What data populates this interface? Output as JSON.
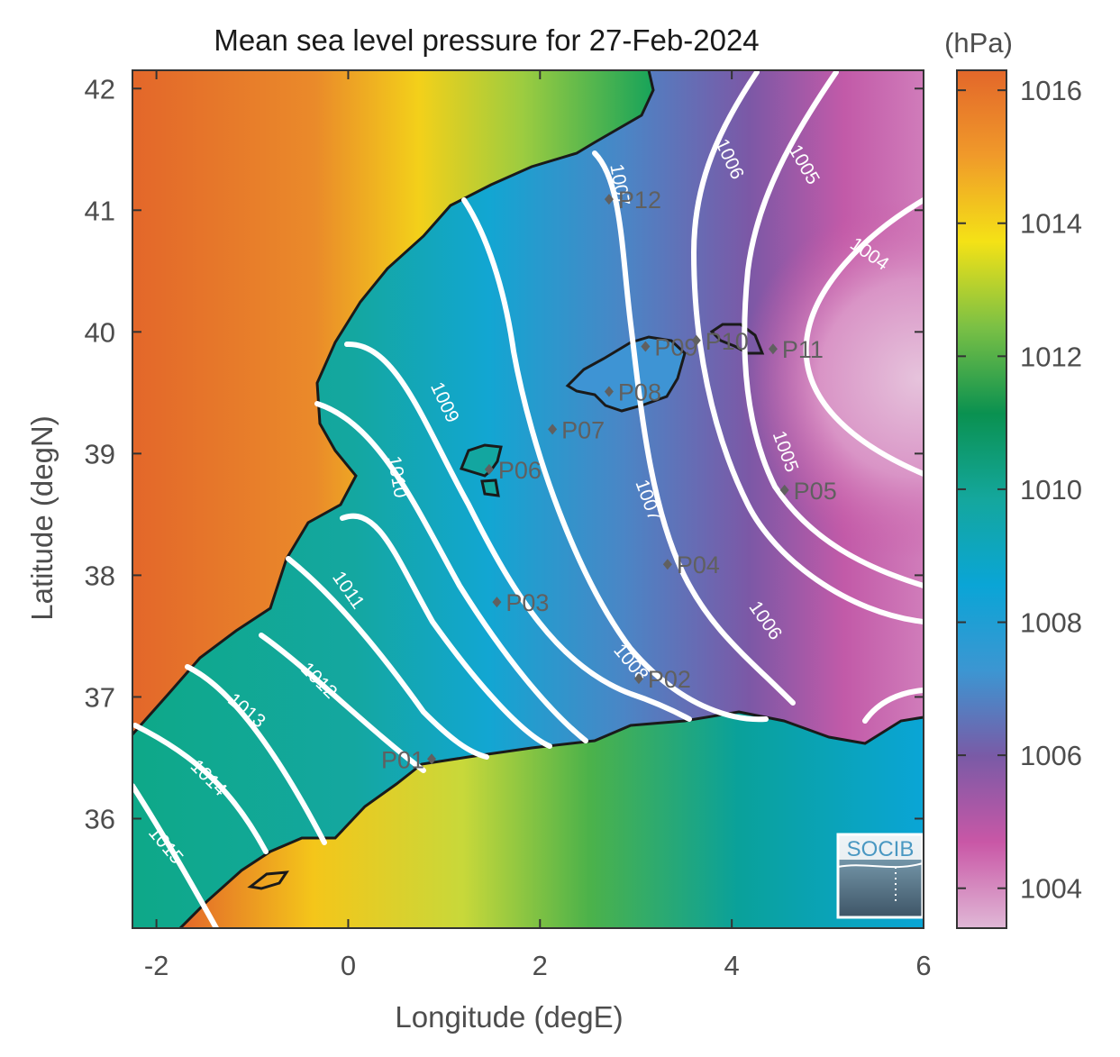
{
  "title": "Mean sea level pressure for 27-Feb-2024",
  "xlabel": "Longitude (degE)",
  "ylabel": "Latitude (degN)",
  "x_ticks": [
    "-2",
    "0",
    "2",
    "4",
    "6"
  ],
  "y_ticks": [
    "42",
    "41",
    "40",
    "39",
    "38",
    "37",
    "36"
  ],
  "colorbar": {
    "unit": "(hPa)",
    "ticks": [
      "1016",
      "1014",
      "1012",
      "1010",
      "1008",
      "1006",
      "1004"
    ],
    "range": [
      1003.4,
      1016.3
    ],
    "colors": [
      "#e0b8d6",
      "#c957a6",
      "#7a5aa6",
      "#3c96d2",
      "#0aa5d6",
      "#14a79d",
      "#0a9150",
      "#7ac045",
      "#f4e216",
      "#f09a2a",
      "#e3672a"
    ]
  },
  "logo_text": "SOCIB",
  "stations": [
    {
      "name": "P01",
      "lon": 0.87,
      "lat": 36.49
    },
    {
      "name": "P02",
      "lon": 3.03,
      "lat": 37.15
    },
    {
      "name": "P03",
      "lon": 1.55,
      "lat": 37.78
    },
    {
      "name": "P04",
      "lon": 3.33,
      "lat": 38.09
    },
    {
      "name": "P05",
      "lon": 4.55,
      "lat": 38.7
    },
    {
      "name": "P06",
      "lon": 1.47,
      "lat": 38.87
    },
    {
      "name": "P07",
      "lon": 2.13,
      "lat": 39.2
    },
    {
      "name": "P08",
      "lon": 2.72,
      "lat": 39.51
    },
    {
      "name": "P09",
      "lon": 3.1,
      "lat": 39.88
    },
    {
      "name": "P10",
      "lon": 3.63,
      "lat": 39.93
    },
    {
      "name": "P11",
      "lon": 4.43,
      "lat": 39.86
    },
    {
      "name": "P12",
      "lon": 2.72,
      "lat": 41.09
    }
  ],
  "contour_labels": [
    {
      "text": "1015",
      "lon": -1.95,
      "lat": 35.75
    },
    {
      "text": "1014",
      "lon": -1.5,
      "lat": 36.3
    },
    {
      "text": "1013",
      "lon": -1.1,
      "lat": 36.85
    },
    {
      "text": "1012",
      "lon": -0.35,
      "lat": 37.1
    },
    {
      "text": "1011",
      "lon": -0.05,
      "lat": 37.85
    },
    {
      "text": "1010",
      "lon": 0.45,
      "lat": 38.8
    },
    {
      "text": "1009",
      "lon": 0.95,
      "lat": 39.4
    },
    {
      "text": "1008",
      "lon": 2.9,
      "lat": 37.25
    },
    {
      "text": "1007",
      "lon": 3.07,
      "lat": 38.6
    },
    {
      "text": "1007",
      "lon": 2.77,
      "lat": 41.2
    },
    {
      "text": "1006",
      "lon": 4.3,
      "lat": 37.6
    },
    {
      "text": "1006",
      "lon": 3.92,
      "lat": 41.4
    },
    {
      "text": "1005",
      "lon": 4.5,
      "lat": 39.0
    },
    {
      "text": "1005",
      "lon": 4.7,
      "lat": 41.35
    },
    {
      "text": "1004",
      "lon": 5.4,
      "lat": 40.6
    }
  ]
}
